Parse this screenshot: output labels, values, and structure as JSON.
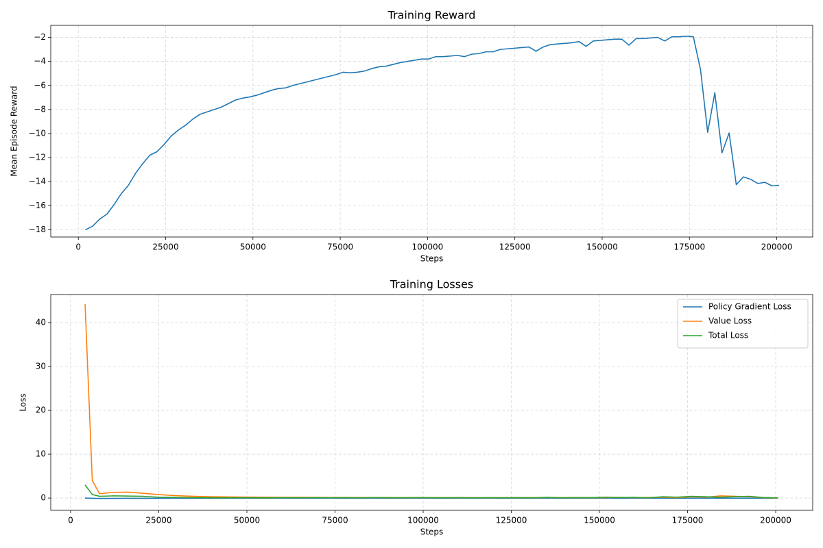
{
  "chart_data": [
    {
      "type": "line",
      "title": "Training Reward",
      "xlabel": "Steps",
      "ylabel": "Mean Episode Reward",
      "color": "#1f77b4",
      "grid": true,
      "x": [
        2048,
        4096,
        6144,
        8192,
        10240,
        12288,
        14336,
        16384,
        18432,
        20480,
        22528,
        24576,
        26624,
        28672,
        30720,
        32768,
        34816,
        36864,
        38912,
        40960,
        43008,
        45056,
        47104,
        49152,
        51200,
        53248,
        55296,
        57344,
        59392,
        61440,
        63488,
        65536,
        67584,
        69632,
        71680,
        73728,
        75776,
        77824,
        79872,
        81920,
        83968,
        86016,
        88064,
        90112,
        92160,
        94208,
        96256,
        98304,
        100352,
        102400,
        104448,
        106496,
        108544,
        110592,
        112640,
        114688,
        116736,
        118784,
        120832,
        122880,
        124928,
        126976,
        129024,
        131072,
        133120,
        135168,
        137216,
        139264,
        141312,
        143360,
        145408,
        147456,
        149504,
        151552,
        153600,
        155648,
        157696,
        159744,
        161792,
        163840,
        165888,
        167936,
        169984,
        172032,
        174080,
        176128,
        178176,
        180224,
        182272,
        184320,
        186368,
        188416,
        190464,
        192512,
        194560,
        196608,
        198656,
        200704
      ],
      "values": [
        -18.0,
        -17.7,
        -17.1,
        -16.7,
        -15.9,
        -15.0,
        -14.3,
        -13.3,
        -12.5,
        -11.8,
        -11.5,
        -10.9,
        -10.2,
        -9.7,
        -9.3,
        -8.8,
        -8.4,
        -8.2,
        -8.0,
        -7.8,
        -7.5,
        -7.2,
        -7.05,
        -6.95,
        -6.8,
        -6.6,
        -6.4,
        -6.25,
        -6.2,
        -6.0,
        -5.85,
        -5.7,
        -5.55,
        -5.4,
        -5.25,
        -5.1,
        -4.9,
        -4.95,
        -4.9,
        -4.8,
        -4.6,
        -4.45,
        -4.4,
        -4.25,
        -4.1,
        -4.0,
        -3.9,
        -3.8,
        -3.8,
        -3.6,
        -3.6,
        -3.55,
        -3.5,
        -3.6,
        -3.4,
        -3.35,
        -3.2,
        -3.2,
        -3.0,
        -2.95,
        -2.9,
        -2.85,
        -2.8,
        -3.15,
        -2.8,
        -2.6,
        -2.55,
        -2.5,
        -2.45,
        -2.35,
        -2.75,
        -2.3,
        -2.25,
        -2.2,
        -2.15,
        -2.15,
        -2.65,
        -2.1,
        -2.1,
        -2.05,
        -2.0,
        -2.3,
        -1.95,
        -1.95,
        -1.9,
        -1.95,
        -4.7,
        -9.9,
        -6.6,
        -11.6,
        -9.95,
        -14.25,
        -13.6,
        -13.8,
        -14.15,
        -14.05,
        -14.35,
        -14.3
      ],
      "xlim": [
        -7900,
        210300
      ],
      "ylim": [
        -18.6,
        -1.0
      ],
      "xticks": [
        0,
        25000,
        50000,
        75000,
        100000,
        125000,
        150000,
        175000,
        200000
      ],
      "yticks": [
        {
          "value": -18,
          "label": "−18"
        },
        {
          "value": -16,
          "label": "−16"
        },
        {
          "value": -14,
          "label": "−14"
        },
        {
          "value": -12,
          "label": "−12"
        },
        {
          "value": -10,
          "label": "−10"
        },
        {
          "value": -8,
          "label": "−8"
        },
        {
          "value": -6,
          "label": "−6"
        },
        {
          "value": -4,
          "label": "−4"
        },
        {
          "value": -2,
          "label": "−2"
        }
      ]
    },
    {
      "type": "line",
      "title": "Training Losses",
      "xlabel": "Steps",
      "ylabel": "Loss",
      "grid": true,
      "legend": "upper right",
      "x": [
        4096,
        6144,
        8192,
        12288,
        16384,
        20480,
        24576,
        28672,
        32768,
        36864,
        40960,
        45056,
        49152,
        53248,
        57344,
        61440,
        65536,
        69632,
        73728,
        77824,
        81920,
        86016,
        90112,
        94208,
        98304,
        102400,
        106496,
        110592,
        114688,
        118784,
        122880,
        126976,
        131072,
        135168,
        139264,
        143360,
        147456,
        151552,
        155648,
        159744,
        163840,
        167936,
        172032,
        176128,
        180224,
        184320,
        188416,
        192512,
        196608,
        200704
      ],
      "series": [
        {
          "name": "Policy Gradient Loss",
          "color": "#1f77b4",
          "values": [
            0.0,
            -0.05,
            -0.1,
            -0.08,
            -0.06,
            -0.05,
            -0.05,
            -0.04,
            -0.05,
            -0.03,
            -0.04,
            -0.03,
            -0.02,
            -0.03,
            -0.02,
            -0.02,
            -0.03,
            -0.02,
            -0.02,
            -0.03,
            -0.02,
            -0.02,
            -0.03,
            -0.02,
            -0.02,
            -0.02,
            -0.03,
            -0.02,
            -0.02,
            -0.02,
            -0.03,
            -0.02,
            -0.02,
            -0.02,
            -0.03,
            -0.02,
            -0.02,
            -0.02,
            -0.03,
            -0.02,
            -0.02,
            -0.02,
            -0.03,
            -0.02,
            -0.02,
            -0.02,
            -0.03,
            -0.02,
            -0.02,
            -0.02
          ]
        },
        {
          "name": "Value Loss",
          "color": "#ff7f0e",
          "values": [
            44.2,
            4.0,
            1.0,
            1.3,
            1.35,
            1.1,
            0.8,
            0.6,
            0.45,
            0.35,
            0.3,
            0.25,
            0.22,
            0.2,
            0.18,
            0.16,
            0.15,
            0.14,
            0.13,
            0.12,
            0.12,
            0.11,
            0.1,
            0.1,
            0.1,
            0.09,
            0.1,
            0.08,
            0.1,
            0.05,
            0.1,
            0.08,
            0.1,
            0.12,
            0.1,
            0.1,
            0.08,
            0.1,
            0.15,
            0.1,
            0.12,
            0.2,
            0.1,
            0.3,
            0.2,
            0.5,
            0.4,
            0.3,
            0.1,
            0.0
          ]
        },
        {
          "name": "Total Loss",
          "color": "#2ca02c",
          "values": [
            3.0,
            0.8,
            0.4,
            0.5,
            0.45,
            0.4,
            0.2,
            0.15,
            0.1,
            0.08,
            0.06,
            0.05,
            0.05,
            0.04,
            0.05,
            0.08,
            0.05,
            0.1,
            0.05,
            0.1,
            0.05,
            0.1,
            0.08,
            0.05,
            0.1,
            0.08,
            0.05,
            0.1,
            0.03,
            0.1,
            0.05,
            0.1,
            0.05,
            0.15,
            0.05,
            0.1,
            0.08,
            0.2,
            0.1,
            0.15,
            0.05,
            0.3,
            0.2,
            0.4,
            0.3,
            0.2,
            0.3,
            0.4,
            0.1,
            0.05
          ]
        }
      ],
      "xlim": [
        -5640,
        210500
      ],
      "ylim": [
        -2.8,
        46.4
      ],
      "xticks": [
        0,
        25000,
        50000,
        75000,
        100000,
        125000,
        150000,
        175000,
        200000
      ],
      "yticks": [
        0,
        10,
        20,
        30,
        40
      ]
    }
  ]
}
